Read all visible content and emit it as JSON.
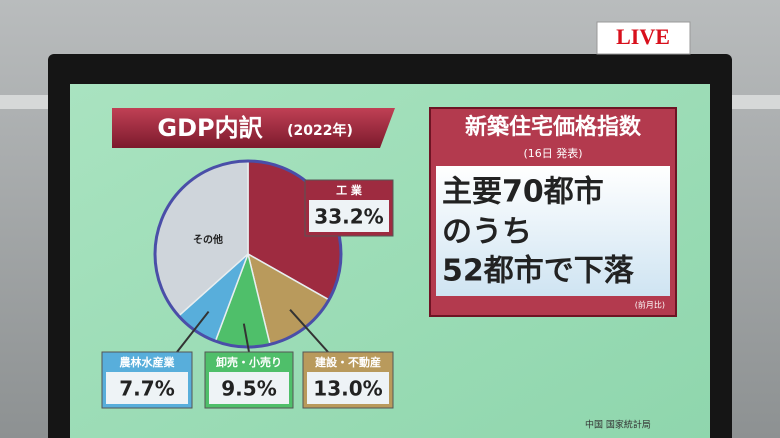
{
  "chart_data": {
    "type": "pie",
    "title": "GDP内訳",
    "subtitle": "(2022年)",
    "categories": [
      "工 業",
      "建設・不動産",
      "卸売・小売り",
      "農林水産業",
      "その他"
    ],
    "values": [
      33.2,
      13.0,
      9.5,
      7.7,
      36.6
    ],
    "value_labels": [
      "33.2%",
      "13.0%",
      "9.5%",
      "7.7%",
      null
    ],
    "colors": [
      "#9e2b40",
      "#b99a5c",
      "#4fbf6a",
      "#58aedb",
      "#cfd5db"
    ]
  },
  "panel": {
    "title": "新築住宅価格指数",
    "subtitle": "(16日 発表)",
    "lines": [
      "主要70都市",
      "のうち",
      "52都市で下落"
    ],
    "note": "(前月比)"
  },
  "source": "中国 国家統計局",
  "live": "LIVE"
}
